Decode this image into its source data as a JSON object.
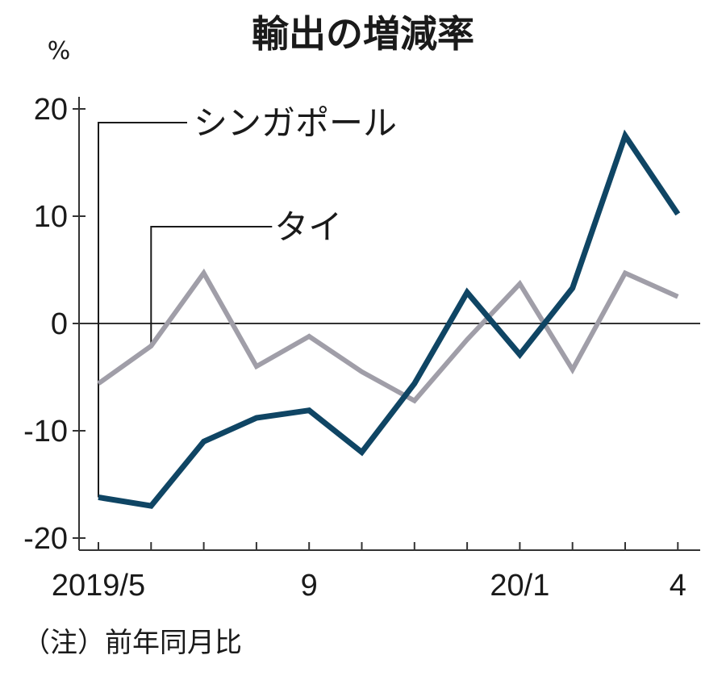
{
  "title": "輸出の増減率",
  "unit_label": "%",
  "note": "（注）前年同月比",
  "colors": {
    "singapore": "#0f4564",
    "thailand": "#a09ea8",
    "axis": "#333333"
  },
  "chart_data": {
    "type": "line",
    "title": "輸出の増減率",
    "ylabel": "%",
    "ylim": [
      -20,
      20
    ],
    "y_ticks": [
      20,
      10,
      0,
      -10,
      -20
    ],
    "y_tick_labels": [
      "20",
      "10",
      "0",
      "-10",
      "-20"
    ],
    "x": [
      "2019/5",
      "2019/6",
      "2019/7",
      "2019/8",
      "2019/9",
      "2019/10",
      "2019/11",
      "2019/12",
      "2020/1",
      "2020/2",
      "2020/3",
      "2020/4"
    ],
    "x_tick_labels": [
      "2019/5",
      "",
      "",
      "",
      "9",
      "",
      "",
      "",
      "20/1",
      "",
      "",
      "4"
    ],
    "series": [
      {
        "name": "シンガポール",
        "color": "#0f4564",
        "values": [
          -16.2,
          -17.0,
          -11.0,
          -8.8,
          -8.1,
          -12.0,
          -5.6,
          2.9,
          -2.9,
          3.3,
          17.5,
          10.2
        ]
      },
      {
        "name": "タイ",
        "color": "#a09ea8",
        "values": [
          -5.6,
          -2.1,
          4.7,
          -4.0,
          -1.2,
          -4.5,
          -7.2,
          -1.5,
          3.7,
          -4.3,
          4.7,
          2.5
        ]
      }
    ]
  }
}
